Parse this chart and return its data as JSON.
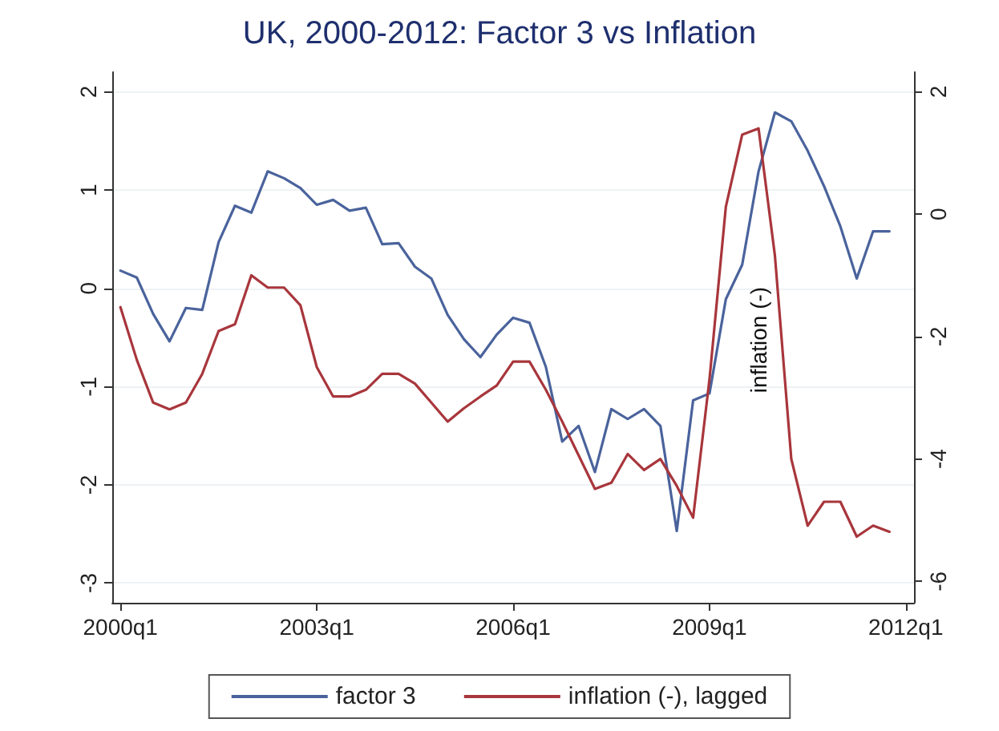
{
  "chart_data": {
    "type": "line",
    "title": "UK, 2000-2012: Factor 3 vs Inflation",
    "categories": [
      "2000q1",
      null,
      null,
      null,
      null,
      null,
      null,
      null,
      null,
      null,
      null,
      null,
      "2003q1",
      null,
      null,
      null,
      null,
      null,
      null,
      null,
      null,
      null,
      null,
      null,
      "2006q1",
      null,
      null,
      null,
      null,
      null,
      null,
      null,
      null,
      null,
      null,
      null,
      "2009q1",
      null,
      null,
      null,
      null,
      null,
      null,
      null,
      null,
      null,
      null,
      null,
      "2012q1"
    ],
    "series": [
      {
        "name": "factor 3",
        "color": "#4a639c",
        "values": [
          0.18,
          0.11,
          -0.26,
          -0.54,
          -0.2,
          -0.22,
          0.47,
          0.84,
          0.77,
          1.19,
          1.12,
          1.02,
          0.85,
          0.9,
          0.79,
          0.82,
          0.45,
          0.46,
          0.22,
          0.1,
          -0.27,
          -0.52,
          -0.7,
          -0.47,
          -0.3,
          -0.35,
          -0.8,
          -1.56,
          -1.4,
          -1.87,
          -1.23,
          -1.33,
          -1.23,
          -1.4,
          -2.47,
          -1.14,
          -1.07,
          -0.11,
          0.24,
          1.19,
          1.79,
          1.7,
          1.4,
          1.04,
          0.63,
          0.1,
          0.58,
          0.58,
          null
        ]
      },
      {
        "name": "inflation (-), lagged",
        "color": "#a8363c",
        "axis": "y2",
        "values": [
          -1.52,
          -2.38,
          -3.08,
          -3.19,
          -3.08,
          -2.61,
          -1.91,
          -1.8,
          -1.0,
          -1.2,
          -1.2,
          -1.49,
          -2.5,
          -2.98,
          -2.98,
          -2.87,
          -2.61,
          -2.61,
          -2.77,
          -3.08,
          -3.39,
          -3.17,
          -2.98,
          -2.8,
          -2.41,
          -2.41,
          -2.87,
          -3.39,
          -3.94,
          -4.49,
          -4.39,
          -3.92,
          -4.18,
          -4.0,
          -4.44,
          -4.96,
          -2.7,
          0.12,
          1.3,
          1.4,
          -0.68,
          -4.0,
          -5.09,
          -4.7,
          -4.7,
          -5.27,
          -5.09,
          -5.19,
          null
        ]
      }
    ],
    "ylim": [
      -3.2,
      2.2
    ],
    "yticks": [
      -3,
      -2,
      -1,
      0,
      1,
      2
    ],
    "y2lim": [
      -6.35,
      2.32
    ],
    "y2ticks": [
      -6,
      -4,
      -2,
      0,
      2
    ],
    "annotations": [
      "inflation (-)"
    ],
    "grid": "y",
    "legend": "bottom",
    "marker": "none",
    "line_style": "solid"
  }
}
